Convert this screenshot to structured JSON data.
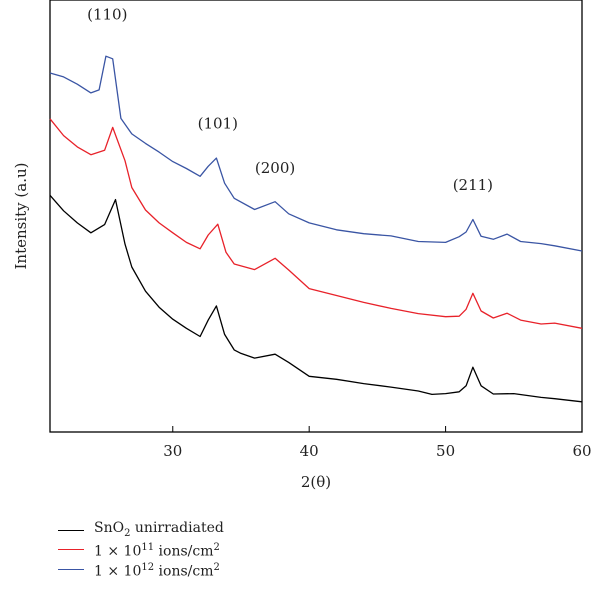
{
  "chart_data": {
    "type": "line",
    "title": "",
    "xlabel": "2(θ)",
    "ylabel": "Intensity (a.u)",
    "xlim": [
      21,
      60
    ],
    "ylim": [
      0,
      100
    ],
    "xticks": [
      30,
      40,
      50,
      60
    ],
    "grid": false,
    "legend_position": "bottom-left",
    "series": [
      {
        "name_prefix": "SnO",
        "name_sub": "2",
        "name_rest": " unirradiated",
        "color": "#000000",
        "x": [
          21,
          22,
          23,
          24,
          25,
          25.8,
          26.5,
          27,
          28,
          29,
          30,
          31,
          32,
          32.6,
          33.2,
          33.8,
          34.5,
          35,
          36,
          37.5,
          38.5,
          40,
          42,
          44,
          46,
          48,
          49,
          50,
          51,
          51.5,
          52,
          52.6,
          53.5,
          55,
          57,
          58,
          60
        ],
        "y": [
          54.8,
          51.2,
          48.4,
          46.1,
          48.0,
          53.8,
          43.5,
          38.2,
          32.6,
          28.9,
          26.1,
          24.0,
          22.1,
          25.9,
          29.2,
          22.6,
          19.0,
          18.2,
          17.1,
          18.0,
          16.1,
          12.9,
          12.2,
          11.2,
          10.4,
          9.5,
          8.7,
          8.9,
          9.3,
          10.7,
          15.0,
          10.7,
          8.8,
          8.9,
          8.0,
          7.7,
          7.0
        ]
      },
      {
        "name_prefix": "1 × 10",
        "name_sup": "11",
        "name_rest": " ions/cm",
        "name_sup2": "2",
        "color": "#e8222a",
        "x": [
          21,
          22,
          23,
          24,
          25,
          25.6,
          26.5,
          27,
          28,
          29,
          30,
          31,
          32,
          32.6,
          33.3,
          33.9,
          34.5,
          36,
          37.5,
          38.5,
          40,
          42,
          44,
          46,
          48,
          50,
          51,
          51.5,
          52,
          52.6,
          53.5,
          54.5,
          55.5,
          57,
          58,
          60
        ],
        "y": [
          72.5,
          68.6,
          66.0,
          64.2,
          65.2,
          70.5,
          62.8,
          56.6,
          51.4,
          48.4,
          46.1,
          43.9,
          42.4,
          45.6,
          48.1,
          41.6,
          38.9,
          37.6,
          40.2,
          37.5,
          33.2,
          31.6,
          30.0,
          28.6,
          27.4,
          26.7,
          26.8,
          28.4,
          32.1,
          28.0,
          26.4,
          27.5,
          25.9,
          25.0,
          25.2,
          24.0
        ]
      },
      {
        "name_prefix": "1 × 10",
        "name_sup": "12",
        "name_rest": " ions/cm",
        "name_sup2": "2",
        "color": "#3a55a4",
        "x": [
          21,
          22,
          23,
          24,
          24.6,
          25.1,
          25.6,
          26.2,
          27,
          28,
          29,
          30,
          31,
          32,
          32.6,
          33.2,
          33.8,
          34.5,
          36,
          37.5,
          38.5,
          40,
          42,
          44,
          46,
          48,
          50,
          51,
          51.5,
          52,
          52.6,
          53.5,
          54.5,
          55.5,
          57,
          58,
          60
        ],
        "y": [
          83.1,
          82.2,
          80.5,
          78.5,
          79.2,
          87.0,
          86.4,
          72.6,
          69.0,
          66.8,
          64.8,
          62.6,
          61.0,
          59.2,
          61.5,
          63.4,
          57.6,
          54.1,
          51.5,
          53.3,
          50.5,
          48.4,
          46.8,
          45.9,
          45.4,
          44.1,
          43.9,
          45.2,
          46.3,
          49.2,
          45.3,
          44.6,
          45.8,
          44.1,
          43.6,
          43.1,
          41.9
        ]
      }
    ],
    "annotations": [
      {
        "text": "(110)",
        "x": 25.2,
        "y": 95.5
      },
      {
        "text": "(101)",
        "x": 33.3,
        "y": 70.3
      },
      {
        "text": "(200)",
        "x": 37.5,
        "y": 60.0
      },
      {
        "text": "(211)",
        "x": 52.0,
        "y": 56.0
      }
    ]
  }
}
